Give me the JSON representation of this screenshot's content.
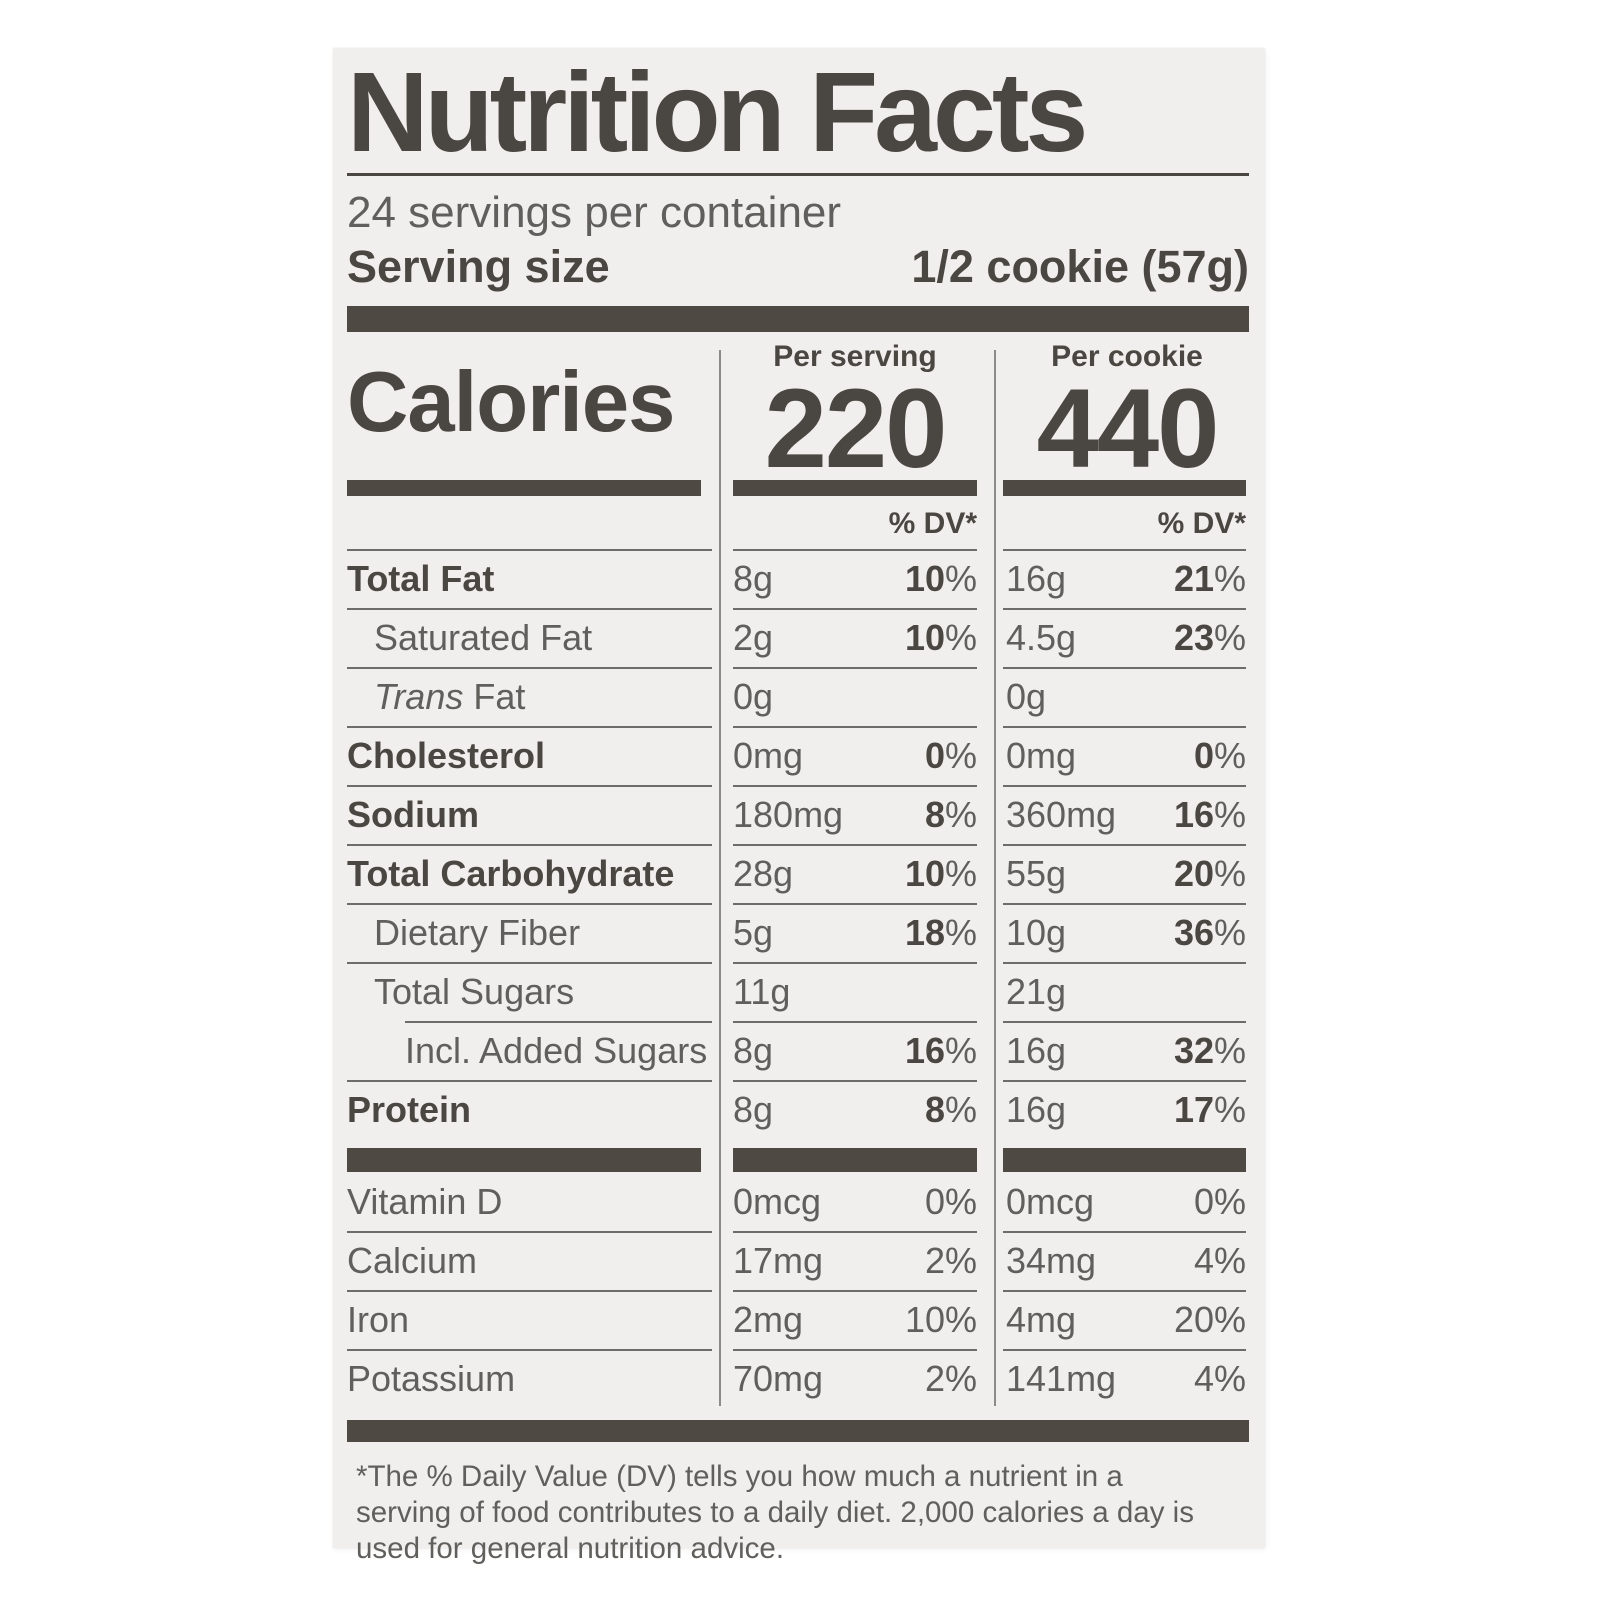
{
  "label": {
    "title": "Nutrition Facts",
    "servings_per_container": "24 servings per container",
    "serving_size": {
      "label": "Serving size",
      "value": "1/2 cookie (57g)"
    },
    "calories": {
      "label": "Calories",
      "per_serving": {
        "header": "Per serving",
        "value": "220"
      },
      "per_cookie": {
        "header": "Per cookie",
        "value": "440"
      },
      "dv_header": "% DV*"
    },
    "nutrient_rows": [
      {
        "name": "Total Fat",
        "bold": true,
        "indent": 0,
        "per_serving": {
          "amount": "8g",
          "dv": "10"
        },
        "per_cookie": {
          "amount": "16g",
          "dv": "21"
        }
      },
      {
        "name": "Saturated Fat",
        "bold": false,
        "indent": 1,
        "per_serving": {
          "amount": "2g",
          "dv": "10"
        },
        "per_cookie": {
          "amount": "4.5g",
          "dv": "23"
        }
      },
      {
        "name": "Fat",
        "italic_prefix": "Trans",
        "bold": false,
        "indent": 1,
        "per_serving": {
          "amount": "0g",
          "dv": ""
        },
        "per_cookie": {
          "amount": "0g",
          "dv": ""
        }
      },
      {
        "name": "Cholesterol",
        "bold": true,
        "indent": 0,
        "per_serving": {
          "amount": "0mg",
          "dv": "0"
        },
        "per_cookie": {
          "amount": "0mg",
          "dv": "0"
        }
      },
      {
        "name": "Sodium",
        "bold": true,
        "indent": 0,
        "per_serving": {
          "amount": "180mg",
          "dv": "8"
        },
        "per_cookie": {
          "amount": "360mg",
          "dv": "16"
        }
      },
      {
        "name": "Total Carbohydrate",
        "bold": true,
        "indent": 0,
        "per_serving": {
          "amount": "28g",
          "dv": "10"
        },
        "per_cookie": {
          "amount": "55g",
          "dv": "20"
        }
      },
      {
        "name": "Dietary Fiber",
        "bold": false,
        "indent": 1,
        "per_serving": {
          "amount": "5g",
          "dv": "18"
        },
        "per_cookie": {
          "amount": "10g",
          "dv": "36"
        }
      },
      {
        "name": "Total Sugars",
        "bold": false,
        "indent": 1,
        "per_serving": {
          "amount": "11g",
          "dv": ""
        },
        "per_cookie": {
          "amount": "21g",
          "dv": ""
        }
      },
      {
        "name": "Incl. Added Sugars",
        "bold": false,
        "indent": 2,
        "rule_indent": true,
        "per_serving": {
          "amount": "8g",
          "dv": "16"
        },
        "per_cookie": {
          "amount": "16g",
          "dv": "32"
        }
      },
      {
        "name": "Protein",
        "bold": true,
        "indent": 0,
        "per_serving": {
          "amount": "8g",
          "dv": "8"
        },
        "per_cookie": {
          "amount": "16g",
          "dv": "17"
        }
      }
    ],
    "micronutrient_rows": [
      {
        "name": "Vitamin D",
        "per_serving": {
          "amount": "0mcg",
          "dv": "0"
        },
        "per_cookie": {
          "amount": "0mcg",
          "dv": "0"
        }
      },
      {
        "name": "Calcium",
        "per_serving": {
          "amount": "17mg",
          "dv": "2"
        },
        "per_cookie": {
          "amount": "34mg",
          "dv": "4"
        }
      },
      {
        "name": "Iron",
        "per_serving": {
          "amount": "2mg",
          "dv": "10"
        },
        "per_cookie": {
          "amount": "4mg",
          "dv": "20"
        }
      },
      {
        "name": "Potassium",
        "per_serving": {
          "amount": "70mg",
          "dv": "2"
        },
        "per_cookie": {
          "amount": "141mg",
          "dv": "4"
        }
      }
    ],
    "percent_sign": "%",
    "footnote": "*The % Daily Value (DV) tells you how much a nutrient in a serving of food contributes to a daily diet. 2,000 calories a day is used for general nutrition advice."
  },
  "colors": {
    "card_background": "#f0efed",
    "text_dark": "#4a4742",
    "text_regular": "#615f5c",
    "bar": "#4e4a43",
    "hairline": "#6e6c68",
    "column_divider": "#8d8b87"
  }
}
